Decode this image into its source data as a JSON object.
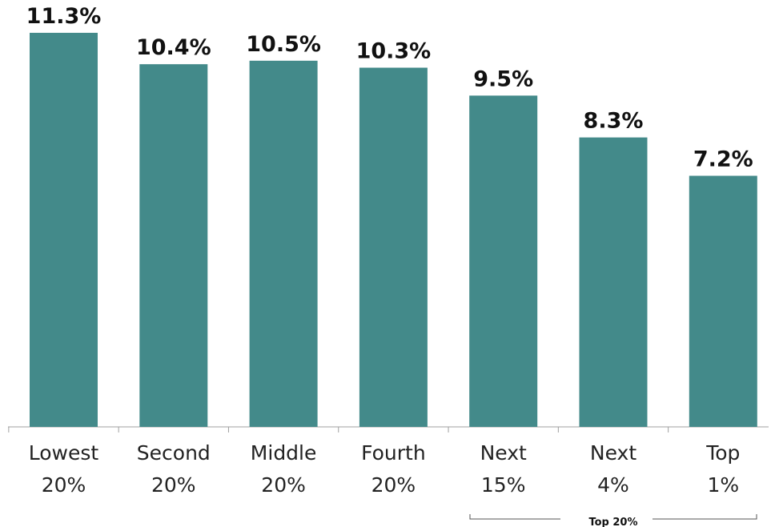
{
  "chart_data": {
    "type": "bar",
    "categories": [
      [
        "Lowest",
        "20%"
      ],
      [
        "Second",
        "20%"
      ],
      [
        "Middle",
        "20%"
      ],
      [
        "Fourth",
        "20%"
      ],
      [
        "Next",
        "15%"
      ],
      [
        "Next",
        "4%"
      ],
      [
        "Top",
        "1%"
      ]
    ],
    "values": [
      11.3,
      10.4,
      10.5,
      10.3,
      9.5,
      8.3,
      7.2
    ],
    "value_labels": [
      "11.3%",
      "10.4%",
      "10.5%",
      "10.3%",
      "9.5%",
      "8.3%",
      "7.2%"
    ],
    "ylim": [
      0,
      12
    ],
    "grid": false,
    "bar_color": "#438a8a",
    "group_bracket": {
      "label": "Top 20%",
      "spans_categories": [
        4,
        6
      ]
    }
  }
}
